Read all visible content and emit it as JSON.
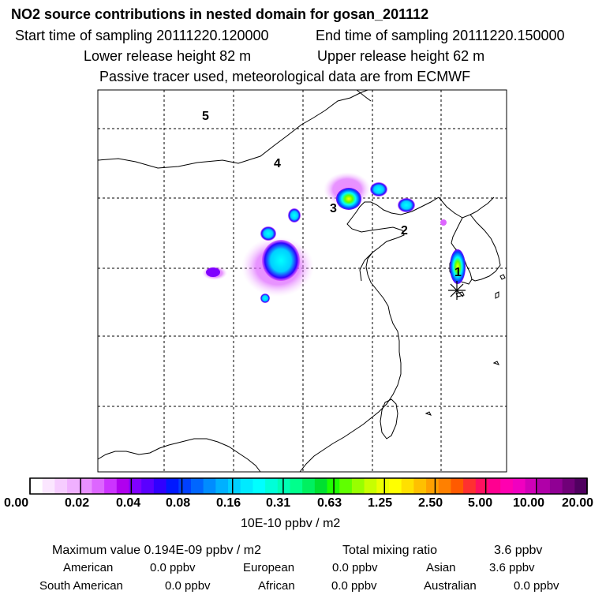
{
  "header": {
    "title": "NO2 source contributions in nested domain for gosan_201112",
    "start_time": "Start time of sampling 20111220.120000",
    "end_time": "End time of sampling 20111220.150000",
    "lower_release": "Lower release height   82 m",
    "upper_release": "Upper release height   62 m",
    "tracer_note": "Passive tracer used, meteorological data are from ECMWF"
  },
  "map": {
    "region_labels": [
      "1",
      "2",
      "3",
      "4",
      "5"
    ],
    "colors": {
      "grid": "#000000",
      "coast": "#000000",
      "low": "#c080ff",
      "mid": "#00ffff",
      "high": "#ffff00"
    }
  },
  "colorbar": {
    "ticks": [
      "0.00",
      "0.02",
      "0.04",
      "0.08",
      "0.16",
      "0.31",
      "0.63",
      "1.25",
      "2.50",
      "5.00",
      "10.00",
      "20.00"
    ],
    "unit": "10E-10 ppbv / m2",
    "colors": [
      "#ffffff",
      "#fbe6ff",
      "#f6ccff",
      "#f0b0ff",
      "#e890ff",
      "#dd66ff",
      "#cc33ff",
      "#b000ee",
      "#8000ff",
      "#5a00ff",
      "#3000ff",
      "#0018ff",
      "#0040ff",
      "#0066ff",
      "#008cff",
      "#00b0ff",
      "#00d0ff",
      "#00eaff",
      "#00ffff",
      "#00ffd8",
      "#00ffb4",
      "#00ff8c",
      "#00f060",
      "#00e030",
      "#20ff00",
      "#60ff00",
      "#98ff00",
      "#c8ff00",
      "#ecff00",
      "#ffff00",
      "#ffe000",
      "#ffc000",
      "#ffa000",
      "#ff8000",
      "#ff5a00",
      "#ff3030",
      "#ff1060",
      "#ff0090",
      "#ff00b0",
      "#f000c0",
      "#d000b8",
      "#b000a8",
      "#900094",
      "#700078",
      "#500060"
    ]
  },
  "summary": {
    "max_value": "Maximum value  0.194E-09 ppbv / m2",
    "total_mixing": "Total mixing ratio",
    "total_mixing_value": "3.6 ppbv",
    "american": "American",
    "american_value": "0.0 ppbv",
    "european": "European",
    "european_value": "0.0 ppbv",
    "asian": "Asian",
    "asian_value": "3.6 ppbv",
    "south_american": "South American",
    "south_american_value": "0.0 ppbv",
    "african": "African",
    "african_value": "0.0 ppbv",
    "australian": "Australian",
    "australian_value": "0.0 ppbv"
  }
}
